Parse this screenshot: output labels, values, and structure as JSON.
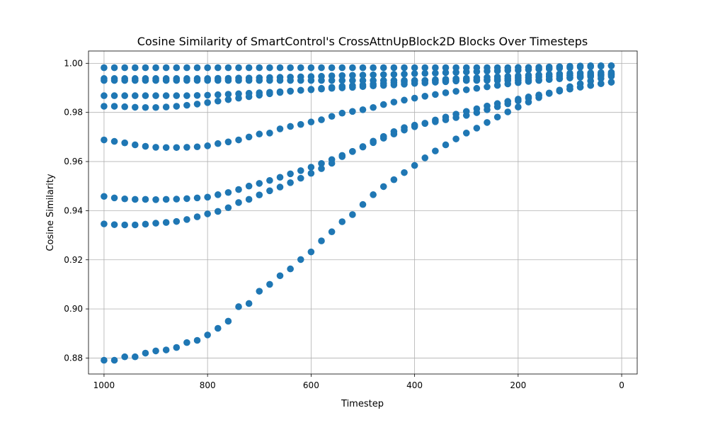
{
  "chart_data": {
    "type": "scatter",
    "title": "Cosine Similarity of SmartControl's CrossAttnUpBlock2D Blocks Over Timesteps",
    "xlabel": "Timestep",
    "ylabel": "Cosine Similarity",
    "xlim": [
      1030,
      -30
    ],
    "ylim": [
      0.8735,
      1.005
    ],
    "xticks": [
      1000,
      800,
      600,
      400,
      200,
      0
    ],
    "xtick_labels": [
      "1000",
      "800",
      "600",
      "400",
      "200",
      "0"
    ],
    "yticks": [
      0.88,
      0.9,
      0.92,
      0.94,
      0.96,
      0.98,
      1.0
    ],
    "ytick_labels": [
      "0.88",
      "0.90",
      "0.92",
      "0.94",
      "0.96",
      "0.98",
      "1.00"
    ],
    "grid": true,
    "marker_color": "#1f77b4",
    "x": [
      1000,
      980,
      960,
      940,
      920,
      900,
      880,
      860,
      840,
      820,
      800,
      780,
      760,
      740,
      720,
      700,
      680,
      660,
      640,
      620,
      600,
      580,
      560,
      540,
      520,
      500,
      480,
      460,
      440,
      420,
      400,
      380,
      360,
      340,
      320,
      300,
      280,
      260,
      240,
      220,
      200,
      180,
      160,
      140,
      120,
      100,
      80,
      60,
      40,
      20
    ],
    "series": [
      {
        "values": [
          0.9982,
          0.9982,
          0.9982,
          0.9982,
          0.9982,
          0.9982,
          0.9982,
          0.9982,
          0.9982,
          0.9982,
          0.9982,
          0.9982,
          0.9982,
          0.9982,
          0.9982,
          0.9982,
          0.9982,
          0.9982,
          0.9982,
          0.9982,
          0.9982,
          0.9982,
          0.9982,
          0.9982,
          0.9982,
          0.9982,
          0.9982,
          0.9982,
          0.9982,
          0.9982,
          0.9982,
          0.9982,
          0.9982,
          0.9982,
          0.9982,
          0.9982,
          0.9982,
          0.9982,
          0.9982,
          0.9982,
          0.9983,
          0.9983,
          0.9984,
          0.9985,
          0.9986,
          0.9988,
          0.9989,
          0.999,
          0.999,
          0.999
        ]
      },
      {
        "values": [
          0.9938,
          0.9938,
          0.9938,
          0.9938,
          0.9938,
          0.9938,
          0.9938,
          0.9938,
          0.9938,
          0.9938,
          0.9938,
          0.9939,
          0.9939,
          0.994,
          0.994,
          0.9941,
          0.9942,
          0.9943,
          0.9944,
          0.9945,
          0.9946,
          0.9947,
          0.9949,
          0.995,
          0.9951,
          0.9952,
          0.9953,
          0.9954,
          0.9955,
          0.9956,
          0.9958,
          0.9959,
          0.996,
          0.9962,
          0.9963,
          0.9965,
          0.9966,
          0.9968,
          0.9969,
          0.9971,
          0.9972,
          0.9974,
          0.9976,
          0.9978,
          0.998,
          0.9982,
          0.9984,
          0.9986,
          0.9988,
          0.999
        ]
      },
      {
        "values": [
          0.993,
          0.993,
          0.993,
          0.993,
          0.993,
          0.993,
          0.993,
          0.993,
          0.993,
          0.993,
          0.993,
          0.993,
          0.993,
          0.993,
          0.993,
          0.993,
          0.993,
          0.993,
          0.993,
          0.993,
          0.993,
          0.993,
          0.993,
          0.993,
          0.993,
          0.993,
          0.993,
          0.993,
          0.993,
          0.993,
          0.993,
          0.993,
          0.993,
          0.993,
          0.993,
          0.993,
          0.993,
          0.993,
          0.993,
          0.993,
          0.993,
          0.9931,
          0.9932,
          0.9934,
          0.9937,
          0.994,
          0.9943,
          0.9946,
          0.9949,
          0.9952
        ]
      },
      {
        "values": [
          0.9868,
          0.9868,
          0.9868,
          0.9868,
          0.9868,
          0.9868,
          0.9868,
          0.9868,
          0.9868,
          0.9869,
          0.987,
          0.9872,
          0.9874,
          0.9876,
          0.9878,
          0.988,
          0.9882,
          0.9884,
          0.9887,
          0.989,
          0.9892,
          0.9895,
          0.9898,
          0.99,
          0.9902,
          0.9905,
          0.9908,
          0.991,
          0.9912,
          0.9915,
          0.9918,
          0.992,
          0.9923,
          0.9925,
          0.9928,
          0.993,
          0.9932,
          0.9934,
          0.9936,
          0.9938,
          0.994,
          0.9942,
          0.9944,
          0.9946,
          0.9948,
          0.995,
          0.9952,
          0.9954,
          0.9955,
          0.9956
        ]
      },
      {
        "values": [
          0.9825,
          0.9825,
          0.9823,
          0.9821,
          0.982,
          0.982,
          0.9822,
          0.9825,
          0.9829,
          0.9834,
          0.984,
          0.9846,
          0.9852,
          0.9858,
          0.9864,
          0.987,
          0.9876,
          0.9881,
          0.9886,
          0.989,
          0.9894,
          0.9898,
          0.9902,
          0.9906,
          0.9909,
          0.9912,
          0.9915,
          0.9918,
          0.9921,
          0.9924,
          0.9927,
          0.993,
          0.9933,
          0.9935,
          0.9937,
          0.9939,
          0.9941,
          0.9943,
          0.9945,
          0.9947,
          0.9949,
          0.9951,
          0.9953,
          0.9955,
          0.9957,
          0.9959,
          0.996,
          0.9961,
          0.9962,
          0.9963
        ]
      },
      {
        "values": [
          0.9688,
          0.9682,
          0.9676,
          0.9668,
          0.9662,
          0.9658,
          0.9657,
          0.9657,
          0.9658,
          0.966,
          0.9664,
          0.9673,
          0.968,
          0.9688,
          0.97,
          0.9712,
          0.9716,
          0.9733,
          0.9743,
          0.9751,
          0.9761,
          0.977,
          0.9784,
          0.9797,
          0.9804,
          0.9811,
          0.982,
          0.9832,
          0.9842,
          0.985,
          0.9858,
          0.9866,
          0.9873,
          0.988,
          0.9886,
          0.9892,
          0.9898,
          0.9904,
          0.991,
          0.9916,
          0.9921,
          0.9926,
          0.993,
          0.9934,
          0.9938,
          0.9942,
          0.9946,
          0.995,
          0.9953,
          0.9956
        ]
      },
      {
        "values": [
          0.9458,
          0.9452,
          0.9448,
          0.9446,
          0.9446,
          0.9445,
          0.9446,
          0.9447,
          0.9449,
          0.9452,
          0.9455,
          0.9465,
          0.9474,
          0.9486,
          0.95,
          0.9511,
          0.9523,
          0.9536,
          0.955,
          0.9563,
          0.9577,
          0.9592,
          0.9608,
          0.9625,
          0.9641,
          0.9659,
          0.9677,
          0.9695,
          0.9712,
          0.9728,
          0.9742,
          0.9756,
          0.9769,
          0.9781,
          0.9793,
          0.9804,
          0.9815,
          0.9826,
          0.9836,
          0.9845,
          0.9854,
          0.9863,
          0.9871,
          0.9879,
          0.9887,
          0.9895,
          0.9903,
          0.991,
          0.9917,
          0.9923
        ]
      },
      {
        "values": [
          0.9346,
          0.9343,
          0.9342,
          0.9342,
          0.9345,
          0.9349,
          0.9352,
          0.9356,
          0.9364,
          0.9375,
          0.9387,
          0.9397,
          0.9412,
          0.9433,
          0.9446,
          0.9464,
          0.9481,
          0.9496,
          0.9514,
          0.9532,
          0.9552,
          0.9571,
          0.9593,
          0.962,
          0.9641,
          0.9661,
          0.9683,
          0.9702,
          0.9722,
          0.9738,
          0.9748,
          0.9755,
          0.9762,
          0.977,
          0.9779,
          0.9788,
          0.9799,
          0.9811,
          0.9823,
          0.9835,
          0.9847,
          0.9858,
          0.9868,
          0.9878,
          0.9887,
          0.9895,
          0.9903,
          0.991,
          0.9917,
          0.9923
        ]
      },
      {
        "values": [
          0.8791,
          0.8791,
          0.8805,
          0.8805,
          0.882,
          0.8829,
          0.8833,
          0.8843,
          0.8863,
          0.8872,
          0.8894,
          0.8921,
          0.895,
          0.9009,
          0.9022,
          0.9072,
          0.91,
          0.9135,
          0.9163,
          0.9201,
          0.9232,
          0.9277,
          0.9314,
          0.9355,
          0.9384,
          0.9425,
          0.9465,
          0.9498,
          0.9526,
          0.9555,
          0.9584,
          0.9615,
          0.9643,
          0.9668,
          0.9692,
          0.9716,
          0.9736,
          0.9759,
          0.9781,
          0.9802,
          0.9822,
          0.9842,
          0.986,
          0.9877,
          0.9891,
          0.9905,
          0.9917,
          0.9928,
          0.9938,
          0.9947
        ]
      }
    ]
  }
}
